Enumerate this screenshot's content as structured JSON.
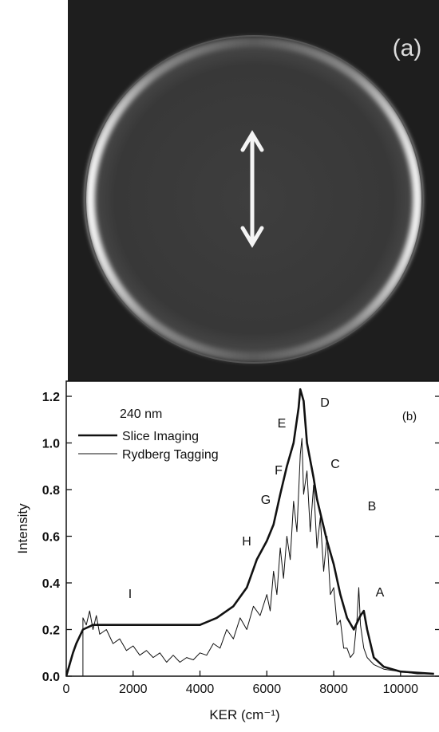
{
  "image": {
    "label": "(a)"
  },
  "chart_data": {
    "type": "line",
    "panel_label": "(b)",
    "legend_title": "240 nm",
    "legend": "upper left",
    "x_label": "KER (cm⁻¹)",
    "y_label": "Intensity",
    "xlim": [
      0,
      11150
    ],
    "ylim": [
      0,
      1.265
    ],
    "xticks": [
      0,
      2000,
      4000,
      6000,
      8000,
      10000
    ],
    "yticks": [
      {
        "value": 0,
        "label": "0.0"
      },
      0.2,
      0.4,
      0.6,
      0.8,
      {
        "value": 1,
        "label": "1.0"
      },
      1.2
    ],
    "annotations": [
      "A",
      "B",
      "C",
      "D",
      "E",
      "F",
      "G",
      "H",
      "I"
    ],
    "series": [
      {
        "name": "Slice Imaging",
        "color": "#111111",
        "line_width": 2.6,
        "x": [
          0,
          100,
          200,
          300,
          500,
          800,
          1000,
          2000,
          3000,
          4000,
          4500,
          5000,
          5400,
          5700,
          6000,
          6200,
          6400,
          6600,
          6800,
          6950,
          7000,
          7100,
          7200,
          7400,
          7500,
          7600,
          7800,
          8000,
          8200,
          8400,
          8600,
          8800,
          8900,
          9000,
          9200,
          9500,
          10000,
          11000
        ],
        "values": [
          0,
          0.05,
          0.1,
          0.14,
          0.2,
          0.22,
          0.22,
          0.22,
          0.22,
          0.22,
          0.25,
          0.3,
          0.38,
          0.5,
          0.58,
          0.65,
          0.78,
          0.9,
          1.0,
          1.15,
          1.23,
          1.18,
          1.0,
          0.85,
          0.76,
          0.7,
          0.58,
          0.48,
          0.35,
          0.25,
          0.2,
          0.26,
          0.28,
          0.2,
          0.08,
          0.04,
          0.02,
          0.01
        ]
      },
      {
        "name": "Rydberg Tagging",
        "color": "#111111",
        "line_width": 1,
        "x": [
          500,
          500,
          600,
          700,
          800,
          900,
          1000,
          1200,
          1400,
          1600,
          1800,
          2000,
          2200,
          2400,
          2600,
          2800,
          3000,
          3200,
          3400,
          3600,
          3800,
          4000,
          4200,
          4400,
          4600,
          4800,
          5000,
          5200,
          5400,
          5600,
          5800,
          6000,
          6100,
          6200,
          6300,
          6400,
          6500,
          6600,
          6700,
          6800,
          6900,
          7000,
          7050,
          7100,
          7200,
          7300,
          7400,
          7500,
          7600,
          7700,
          7800,
          7900,
          8000,
          8100,
          8200,
          8300,
          8400,
          8500,
          8600,
          8700,
          8750,
          8800,
          8900,
          9000,
          9200,
          9500,
          10000,
          10500,
          11000
        ],
        "values": [
          0,
          0.25,
          0.22,
          0.28,
          0.2,
          0.26,
          0.18,
          0.2,
          0.14,
          0.16,
          0.11,
          0.13,
          0.09,
          0.11,
          0.08,
          0.1,
          0.06,
          0.09,
          0.06,
          0.08,
          0.07,
          0.1,
          0.09,
          0.14,
          0.12,
          0.2,
          0.16,
          0.25,
          0.2,
          0.3,
          0.26,
          0.35,
          0.28,
          0.45,
          0.35,
          0.55,
          0.42,
          0.6,
          0.5,
          0.75,
          0.62,
          0.95,
          1.02,
          0.78,
          0.88,
          0.62,
          0.82,
          0.55,
          0.68,
          0.45,
          0.6,
          0.35,
          0.38,
          0.22,
          0.24,
          0.12,
          0.12,
          0.08,
          0.1,
          0.25,
          0.38,
          0.22,
          0.12,
          0.08,
          0.05,
          0.03,
          0.02,
          0.01,
          0.01
        ]
      }
    ]
  }
}
